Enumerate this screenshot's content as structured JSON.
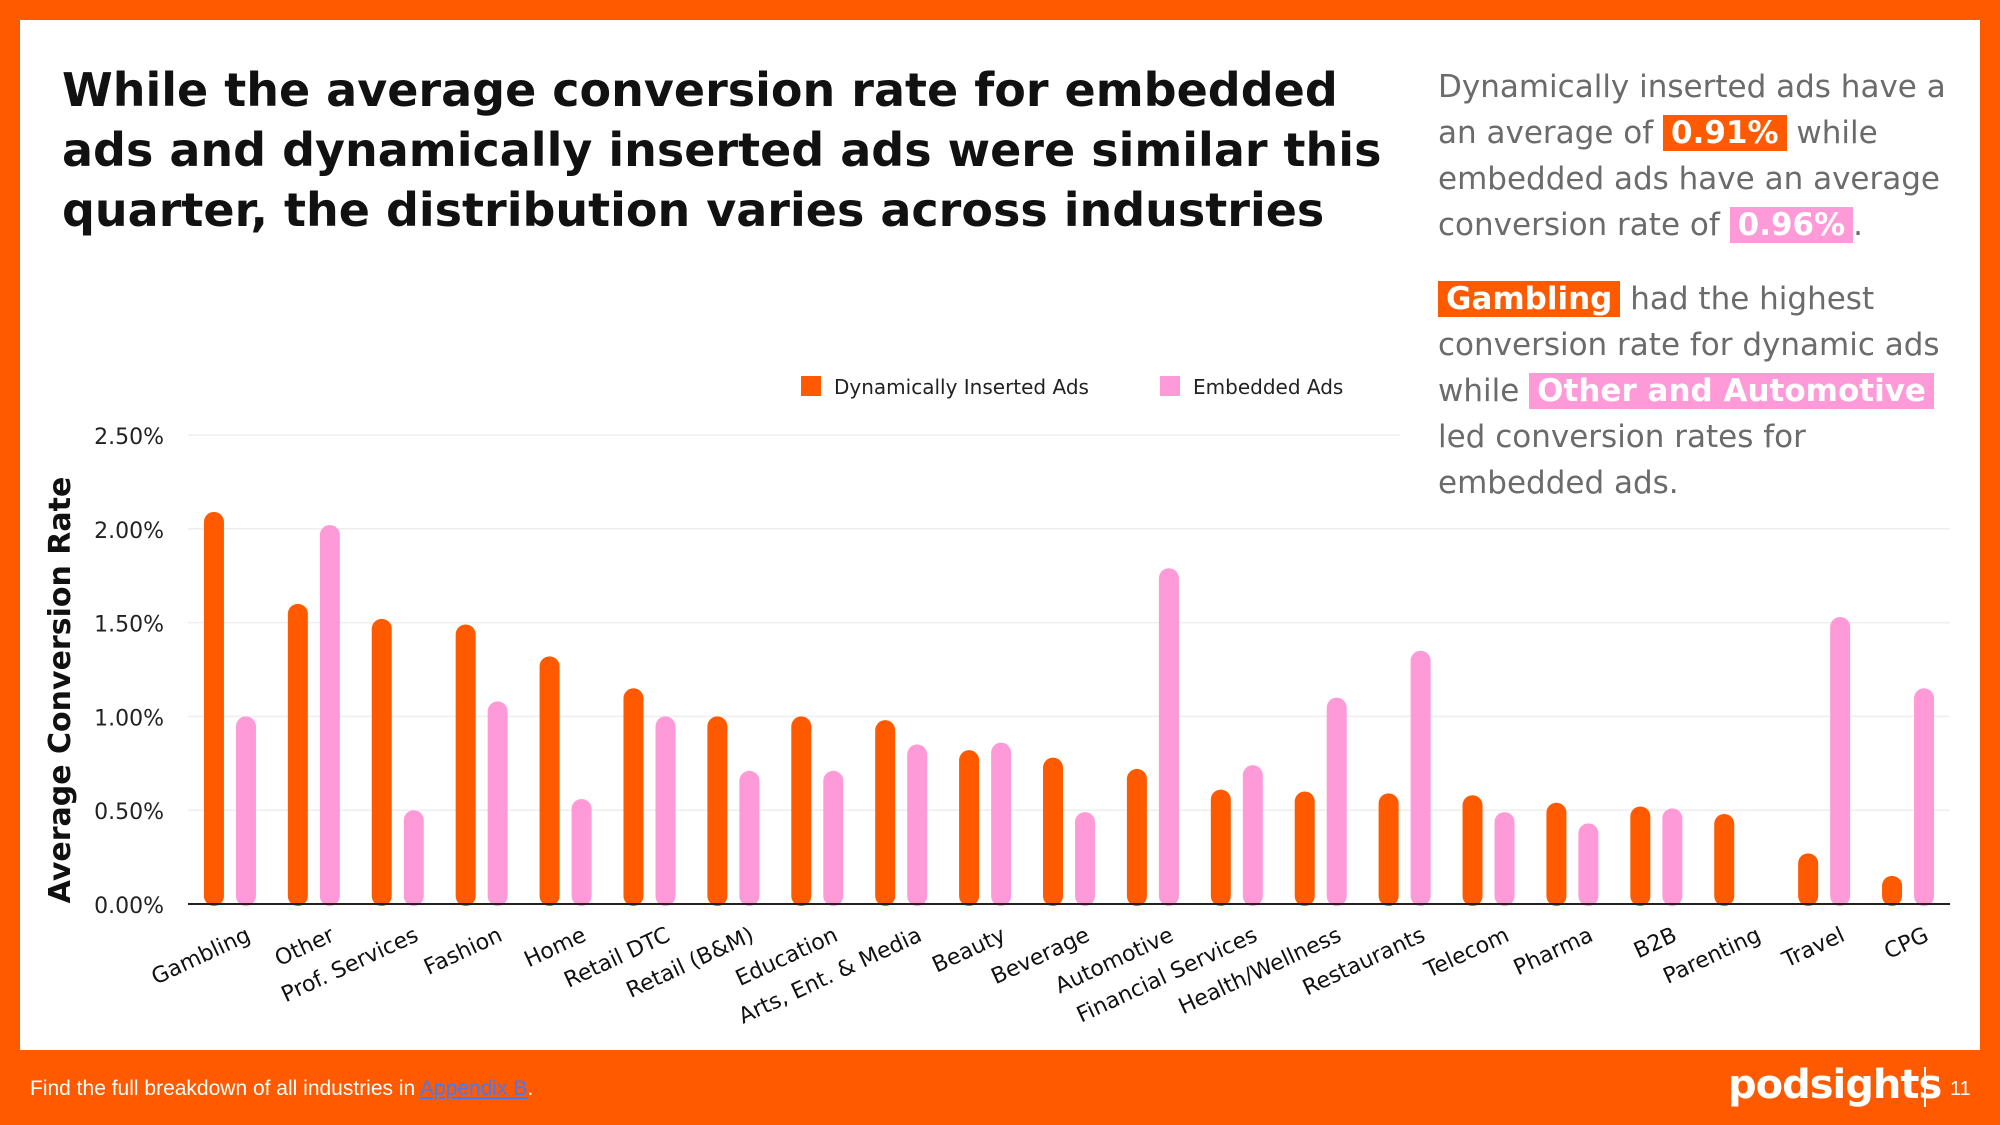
{
  "headline": "While the average conversion rate for embedded ads and dynamically inserted ads were similar this quarter, the distribution varies across industries",
  "sidebar": {
    "p1_a": "Dynamically inserted ads have a an average of",
    "p1_hl1": "0.91%",
    "p1_b": "while embedded ads have an average conversion rate of",
    "p1_hl2": "0.96%",
    "p1_c": ".",
    "p2_hl1": "Gambling",
    "p2_a": "had the highest conversion rate for dynamic ads while",
    "p2_hl2": "Other and Automotive",
    "p2_b": "led conversion rates for embedded ads."
  },
  "footer": {
    "note_prefix": "Find the full breakdown of all industries in",
    "note_link": "Appendix B",
    "note_suffix": ".",
    "brand": "podsights",
    "page_number": "11"
  },
  "colors": {
    "brand_orange": "#FF5A00",
    "embedded_pink": "#FF9AD8",
    "text_dark": "#111111",
    "text_gray": "#6b6b6b"
  },
  "chart_data": {
    "type": "bar",
    "ylabel": "Average Conversion Rate",
    "xlabel": "",
    "ylim": [
      0,
      2.5
    ],
    "yticks": [
      "0.00%",
      "0.50%",
      "1.00%",
      "1.50%",
      "2.00%",
      "2.50%"
    ],
    "grid": true,
    "legend_position": "top",
    "categories": [
      "Gambling",
      "Other",
      "Prof. Services",
      "Fashion",
      "Home",
      "Retail DTC",
      "Retail (B&M)",
      "Education",
      "Arts, Ent. & Media",
      "Beauty",
      "Beverage",
      "Automotive",
      "Financial Services",
      "Health/Wellness",
      "Restaurants",
      "Telecom",
      "Pharma",
      "B2B",
      "Parenting",
      "Travel",
      "CPG"
    ],
    "series": [
      {
        "name": "Dynamically Inserted Ads",
        "color": "#FF5A00",
        "values": [
          2.09,
          1.6,
          1.52,
          1.49,
          1.32,
          1.15,
          1.0,
          1.0,
          0.98,
          0.82,
          0.78,
          0.72,
          0.61,
          0.6,
          0.59,
          0.58,
          0.54,
          0.52,
          0.48,
          0.27,
          0.15
        ]
      },
      {
        "name": "Embedded Ads",
        "color": "#FF9AD8",
        "values": [
          1.0,
          2.02,
          0.5,
          1.08,
          0.56,
          1.0,
          0.71,
          0.71,
          0.85,
          0.86,
          0.49,
          1.79,
          0.74,
          1.1,
          1.35,
          0.49,
          0.43,
          0.51,
          null,
          1.53,
          1.15
        ]
      }
    ]
  }
}
